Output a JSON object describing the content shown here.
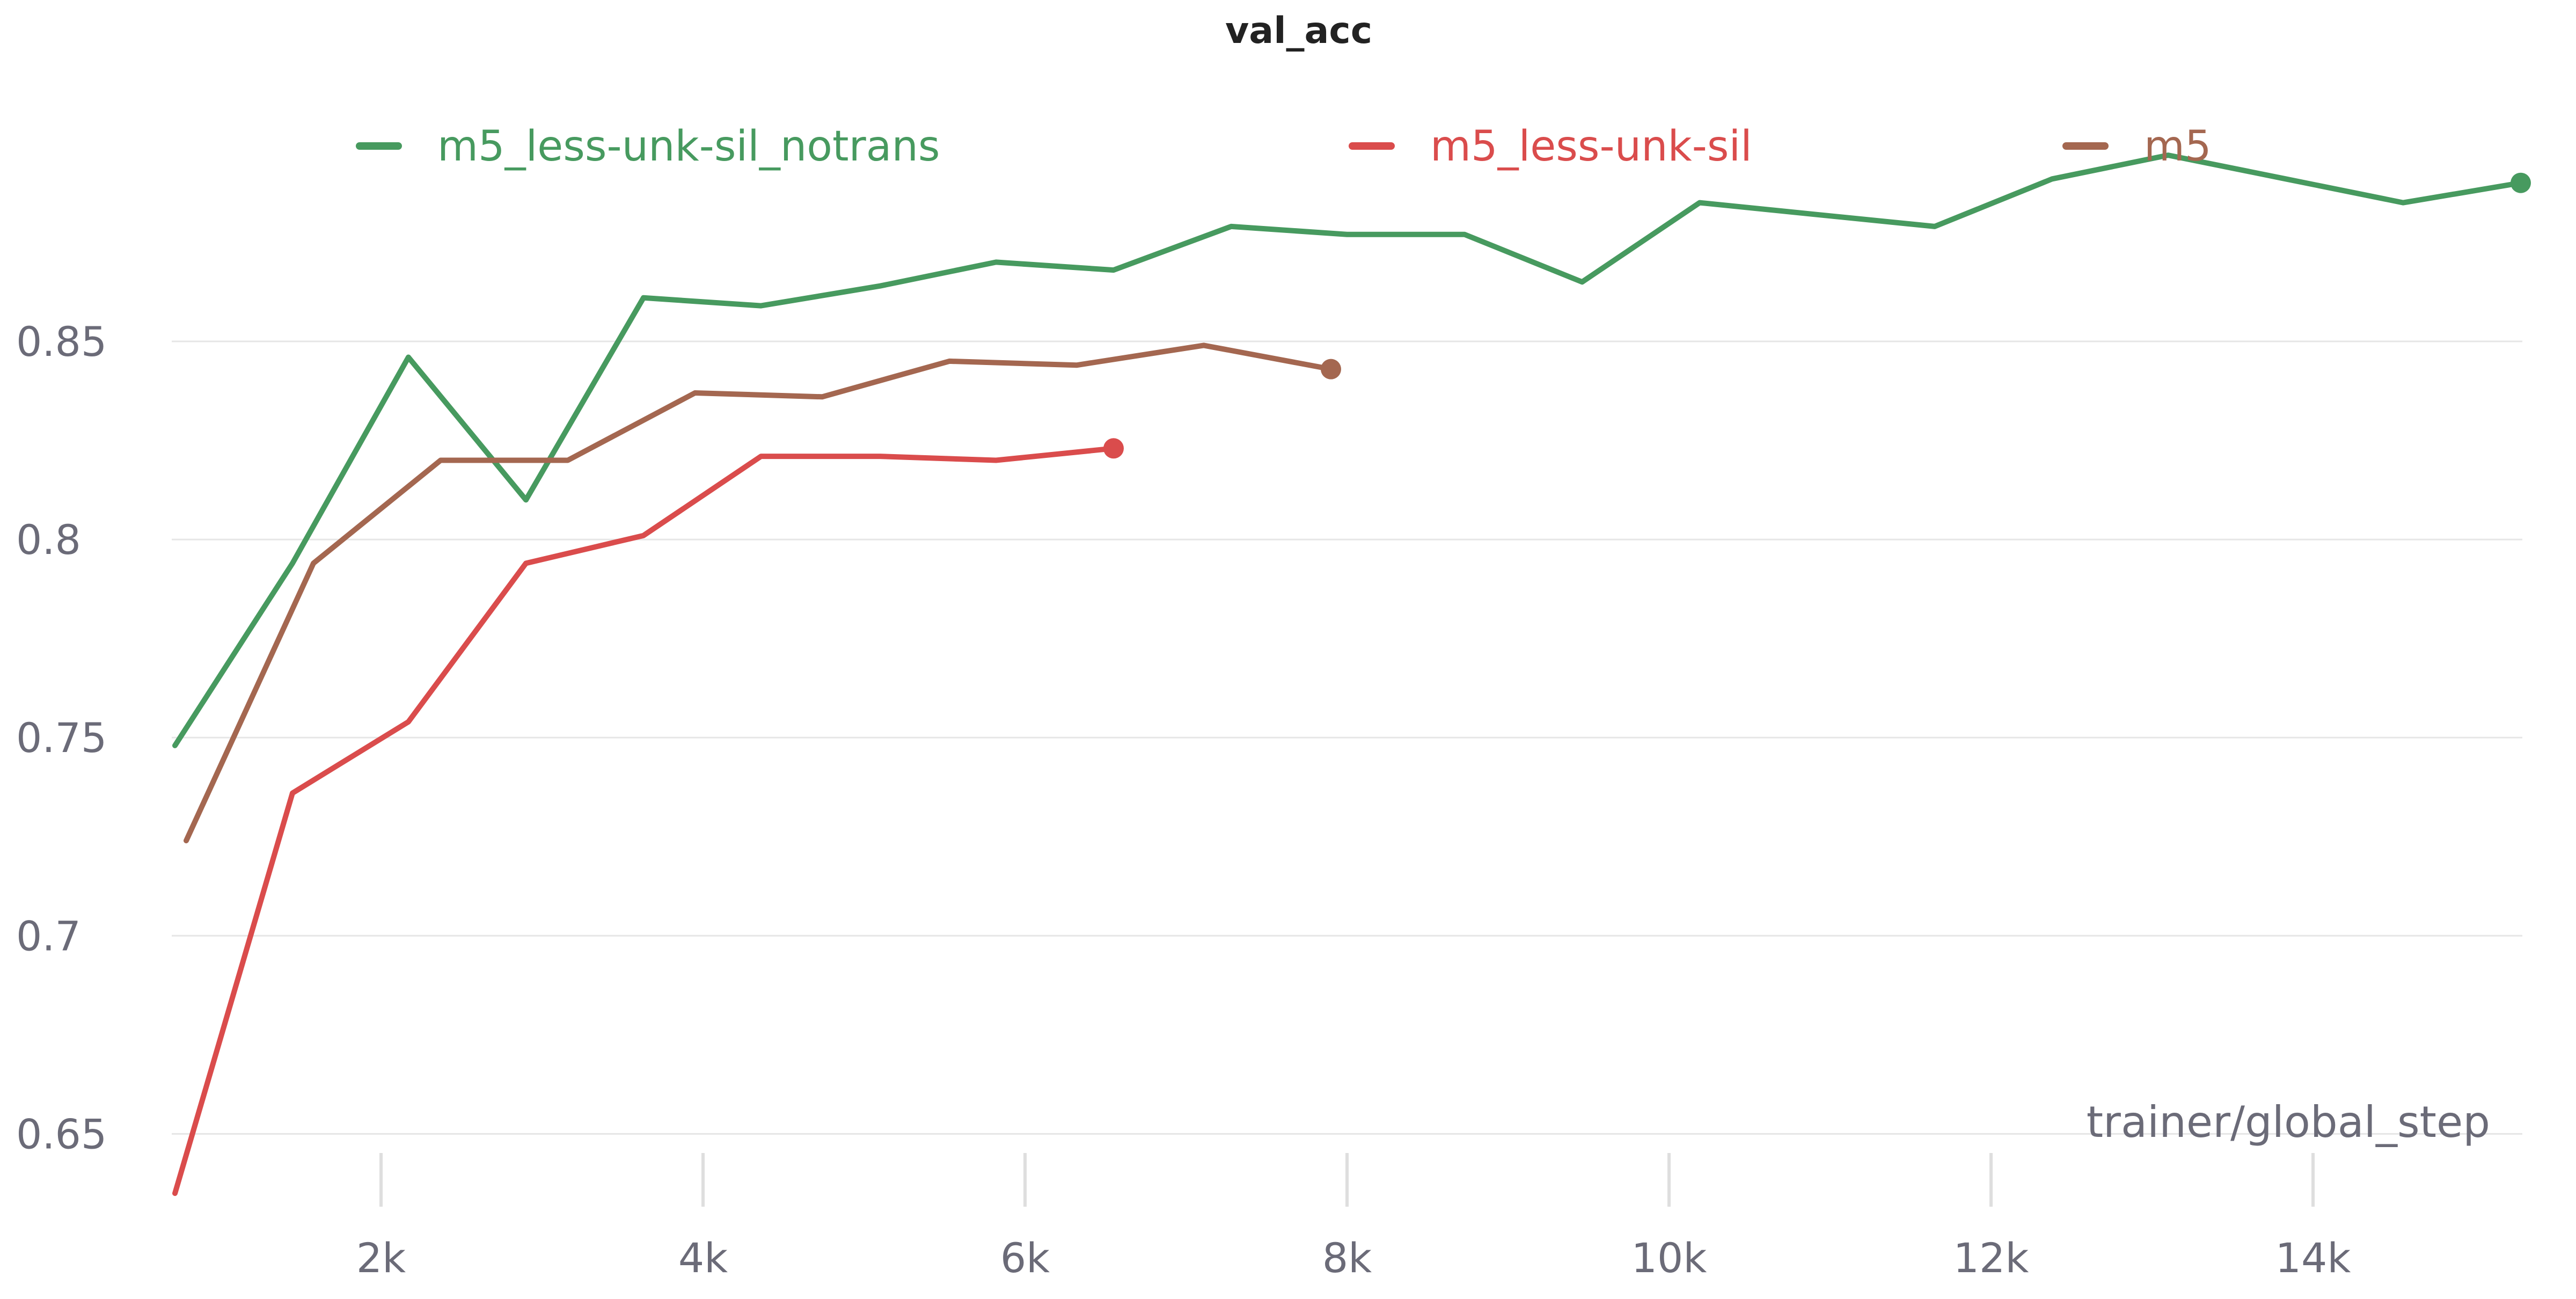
{
  "chart_data": {
    "type": "line",
    "title": "val_acc",
    "xlabel": "trainer/global_step",
    "ylabel": "",
    "xlim": [
      700,
      15300
    ],
    "ylim": [
      0.63,
      0.905
    ],
    "x_ticks": [
      2000,
      4000,
      6000,
      8000,
      10000,
      12000,
      14000
    ],
    "x_tick_labels": [
      "2k",
      "4k",
      "6k",
      "8k",
      "10k",
      "12k",
      "14k"
    ],
    "y_ticks": [
      0.65,
      0.7,
      0.75,
      0.8,
      0.85
    ],
    "y_tick_labels": [
      "0.65",
      "0.7",
      "0.75",
      "0.8",
      "0.85"
    ],
    "grid": true,
    "legend_position": "top",
    "series": [
      {
        "name": "m5_less-unk-sil_notrans",
        "color": "#479a5f",
        "x": [
          720,
          1450,
          2170,
          2900,
          3630,
          4360,
          5100,
          5820,
          6550,
          7280,
          8000,
          8730,
          9460,
          10190,
          10920,
          11650,
          12380,
          13100,
          13830,
          14560,
          15290
        ],
        "y": [
          0.748,
          0.794,
          0.846,
          0.81,
          0.861,
          0.859,
          0.864,
          0.87,
          0.868,
          0.879,
          0.877,
          0.877,
          0.865,
          0.885,
          0.882,
          0.879,
          0.891,
          0.897,
          0.891,
          0.885,
          0.89
        ]
      },
      {
        "name": "m5_less-unk-sil",
        "color": "#da4c4c",
        "x": [
          720,
          1450,
          2170,
          2900,
          3630,
          4360,
          5100,
          5820,
          6550
        ],
        "y": [
          0.635,
          0.736,
          0.754,
          0.794,
          0.801,
          0.821,
          0.821,
          0.82,
          0.823
        ]
      },
      {
        "name": "m5",
        "color": "#a46750",
        "x": [
          790,
          1580,
          2370,
          3160,
          3950,
          4740,
          5530,
          6320,
          7110,
          7900
        ],
        "y": [
          0.724,
          0.794,
          0.82,
          0.82,
          0.837,
          0.836,
          0.845,
          0.844,
          0.849,
          0.843
        ]
      }
    ]
  }
}
